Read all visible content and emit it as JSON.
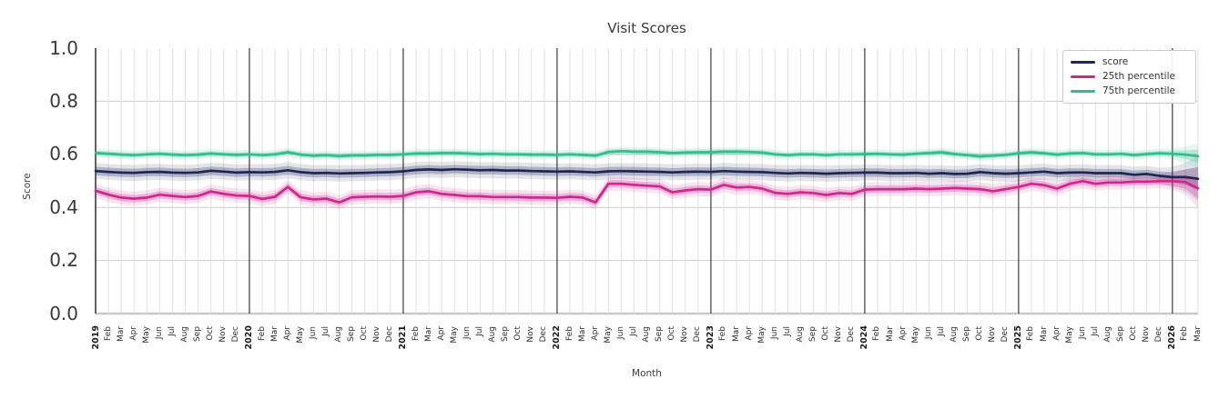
{
  "chart_data": {
    "type": "line",
    "title": "Visit Scores",
    "xlabel": "Month",
    "ylabel": "Score",
    "ylim": [
      0.0,
      1.0
    ],
    "yticks": [
      0.0,
      0.2,
      0.4,
      0.6,
      0.8,
      1.0
    ],
    "grid": "on",
    "legend_position": "upper right",
    "x_labels": [
      "2019",
      "Feb",
      "Mar",
      "Apr",
      "May",
      "Jun",
      "Jul",
      "Aug",
      "Sep",
      "Oct",
      "Nov",
      "Dec",
      "2020",
      "Feb",
      "Mar",
      "Apr",
      "May",
      "Jun",
      "Jul",
      "Aug",
      "Sep",
      "Oct",
      "Nov",
      "Dec",
      "2021",
      "Feb",
      "Mar",
      "Apr",
      "May",
      "Jun",
      "Jul",
      "Aug",
      "Sep",
      "Oct",
      "Nov",
      "Dec",
      "2022",
      "Feb",
      "Mar",
      "Apr",
      "May",
      "Jun",
      "Jul",
      "Aug",
      "Sep",
      "Oct",
      "Nov",
      "Dec",
      "2023",
      "Feb",
      "Mar",
      "Apr",
      "May",
      "Jun",
      "Jul",
      "Aug",
      "Sep",
      "Oct",
      "Nov",
      "Dec",
      "2024",
      "Feb",
      "Mar",
      "Apr",
      "May",
      "Jun",
      "Jul",
      "Aug",
      "Sep",
      "Oct",
      "Nov",
      "Dec",
      "2025",
      "Feb",
      "Mar",
      "Apr",
      "May",
      "Jun",
      "Jul",
      "Aug",
      "Sep",
      "Oct",
      "Nov",
      "Dec",
      "2026",
      "Feb",
      "Mar"
    ],
    "year_tick_indices": [
      0,
      12,
      24,
      36,
      48,
      60,
      72,
      84
    ],
    "series": [
      {
        "name": "score",
        "color": "#1e2757",
        "band_halfwidth": 0.016,
        "values": [
          0.537,
          0.534,
          0.531,
          0.53,
          0.533,
          0.534,
          0.531,
          0.53,
          0.532,
          0.538,
          0.535,
          0.531,
          0.533,
          0.532,
          0.534,
          0.54,
          0.533,
          0.529,
          0.53,
          0.528,
          0.529,
          0.53,
          0.532,
          0.533,
          0.536,
          0.541,
          0.543,
          0.541,
          0.544,
          0.542,
          0.54,
          0.541,
          0.539,
          0.539,
          0.537,
          0.536,
          0.535,
          0.536,
          0.534,
          0.532,
          0.536,
          0.537,
          0.536,
          0.535,
          0.534,
          0.532,
          0.534,
          0.535,
          0.534,
          0.537,
          0.535,
          0.534,
          0.533,
          0.53,
          0.528,
          0.53,
          0.529,
          0.527,
          0.529,
          0.53,
          0.531,
          0.531,
          0.529,
          0.529,
          0.53,
          0.527,
          0.529,
          0.526,
          0.527,
          0.533,
          0.529,
          0.527,
          0.529,
          0.532,
          0.535,
          0.529,
          0.531,
          0.532,
          0.529,
          0.529,
          0.529,
          0.523,
          0.526,
          0.519,
          0.514,
          0.514,
          0.508
        ]
      },
      {
        "name": "25th percentile",
        "color": "#d02690",
        "band_halfwidth": 0.014,
        "values": [
          0.463,
          0.448,
          0.437,
          0.433,
          0.437,
          0.448,
          0.443,
          0.439,
          0.443,
          0.46,
          0.451,
          0.445,
          0.443,
          0.432,
          0.44,
          0.477,
          0.438,
          0.43,
          0.433,
          0.419,
          0.438,
          0.44,
          0.441,
          0.44,
          0.443,
          0.457,
          0.461,
          0.451,
          0.447,
          0.442,
          0.442,
          0.439,
          0.439,
          0.439,
          0.437,
          0.437,
          0.436,
          0.44,
          0.437,
          0.419,
          0.489,
          0.489,
          0.485,
          0.482,
          0.479,
          0.457,
          0.464,
          0.469,
          0.467,
          0.485,
          0.475,
          0.477,
          0.471,
          0.455,
          0.451,
          0.457,
          0.454,
          0.447,
          0.454,
          0.451,
          0.467,
          0.469,
          0.469,
          0.469,
          0.471,
          0.469,
          0.471,
          0.473,
          0.471,
          0.469,
          0.461,
          0.469,
          0.477,
          0.489,
          0.484,
          0.471,
          0.489,
          0.499,
          0.489,
          0.494,
          0.494,
          0.497,
          0.497,
          0.499,
          0.499,
          0.496,
          0.472
        ]
      },
      {
        "name": "75th percentile",
        "color": "#2fbe90",
        "band_halfwidth": 0.009,
        "values": [
          0.605,
          0.602,
          0.599,
          0.597,
          0.6,
          0.602,
          0.599,
          0.597,
          0.599,
          0.603,
          0.6,
          0.598,
          0.6,
          0.597,
          0.6,
          0.608,
          0.599,
          0.595,
          0.597,
          0.593,
          0.596,
          0.596,
          0.598,
          0.598,
          0.6,
          0.603,
          0.603,
          0.605,
          0.605,
          0.603,
          0.601,
          0.602,
          0.6,
          0.6,
          0.599,
          0.599,
          0.598,
          0.6,
          0.598,
          0.595,
          0.609,
          0.612,
          0.61,
          0.61,
          0.608,
          0.605,
          0.607,
          0.608,
          0.608,
          0.61,
          0.61,
          0.609,
          0.607,
          0.6,
          0.597,
          0.6,
          0.6,
          0.597,
          0.6,
          0.6,
          0.601,
          0.602,
          0.6,
          0.599,
          0.602,
          0.605,
          0.608,
          0.601,
          0.597,
          0.592,
          0.595,
          0.598,
          0.604,
          0.608,
          0.604,
          0.599,
          0.603,
          0.605,
          0.6,
          0.6,
          0.602,
          0.597,
          0.601,
          0.604,
          0.602,
          0.599,
          0.593
        ]
      }
    ],
    "style": {
      "month_gridline_color": "#e1e1e1",
      "year_gridline_color": "#3b3b3b",
      "h_gridline_color": "#cbcbcb",
      "zero_line_color": "#c8c8c8",
      "spine_color": "#2f2f2f",
      "title_color": "#3a3a3a",
      "tick_color": "#3a3a3a"
    }
  }
}
